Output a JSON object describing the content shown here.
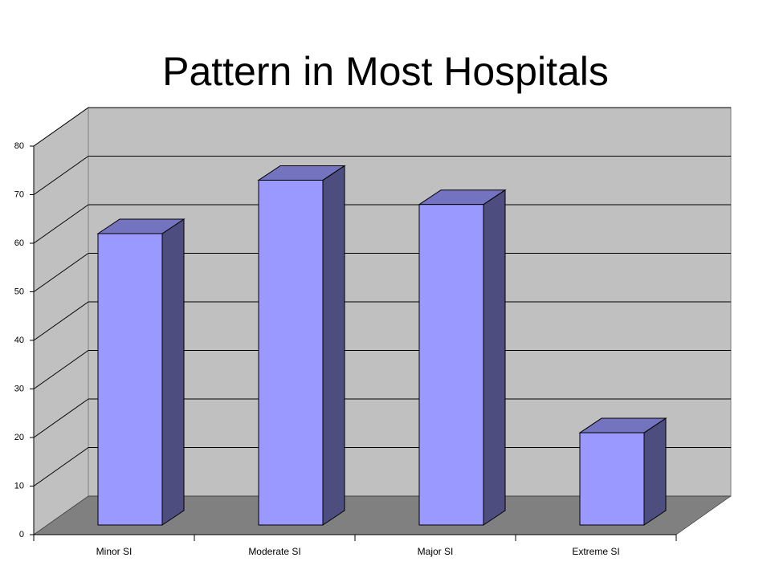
{
  "chart_data": {
    "type": "bar3d",
    "title": "Pattern in Most Hospitals",
    "categories": [
      "Minor SI",
      "Moderate SI",
      "Major SI",
      "Extreme SI"
    ],
    "values": [
      60,
      71,
      66,
      19
    ],
    "color": "#9999ff",
    "ylim": [
      0,
      80
    ],
    "yticks": [
      0,
      10,
      20,
      30,
      40,
      50,
      60,
      70,
      80
    ],
    "grid": true
  }
}
